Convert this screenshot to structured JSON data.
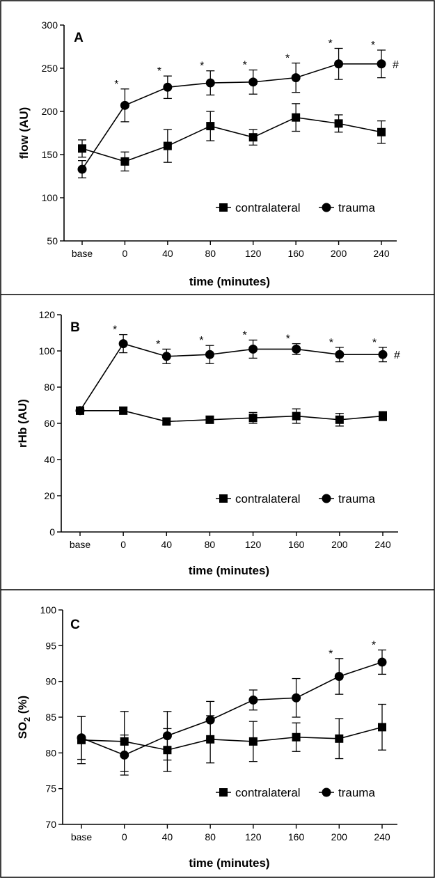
{
  "chart_data": [
    {
      "type": "line",
      "panel": "A",
      "xlabel": "time (minutes)",
      "ylabel": "flow (AU)",
      "ylim": [
        50,
        300
      ],
      "yticks": [
        50,
        100,
        150,
        200,
        250,
        300
      ],
      "categories": [
        "base",
        "0",
        "40",
        "80",
        "120",
        "160",
        "200",
        "240"
      ],
      "series": [
        {
          "name": "contralateral",
          "marker": "square",
          "values": [
            157,
            142,
            160,
            183,
            170,
            193,
            186,
            176
          ],
          "errors": [
            10,
            11,
            19,
            17,
            9,
            16,
            10,
            13
          ]
        },
        {
          "name": "trauma",
          "marker": "circle",
          "values": [
            133,
            207,
            228,
            233,
            234,
            239,
            255,
            255
          ],
          "errors": [
            10,
            19,
            13,
            14,
            14,
            17,
            18,
            16
          ]
        }
      ],
      "significance_marks": [
        "",
        "*",
        "*",
        "*",
        "*",
        "*",
        "*",
        "*"
      ],
      "significance_series": "trauma",
      "hash_mark": "#",
      "legend": "bottom-right"
    },
    {
      "type": "line",
      "panel": "B",
      "xlabel": "time (minutes)",
      "ylabel": "rHb (AU)",
      "ylim": [
        0,
        120
      ],
      "yticks": [
        0,
        20,
        40,
        60,
        80,
        100,
        120
      ],
      "categories": [
        "base",
        "0",
        "40",
        "80",
        "120",
        "160",
        "200",
        "240"
      ],
      "series": [
        {
          "name": "contralateral",
          "marker": "square",
          "values": [
            67,
            67,
            61,
            62,
            63,
            64,
            62,
            64
          ],
          "errors": [
            2,
            2,
            1.5,
            2,
            3,
            4,
            3.5,
            2.5
          ]
        },
        {
          "name": "trauma",
          "marker": "circle",
          "values": [
            67,
            104,
            97,
            98,
            101,
            101,
            98,
            98
          ],
          "errors": [
            2,
            5,
            4,
            5,
            5,
            3,
            4,
            4
          ]
        }
      ],
      "significance_marks": [
        "",
        "*",
        "*",
        "*",
        "*",
        "*",
        "*",
        "*"
      ],
      "significance_series": "trauma",
      "hash_mark": "#",
      "legend": "bottom-right"
    },
    {
      "type": "line",
      "panel": "C",
      "xlabel": "time (minutes)",
      "ylabel": "SO2 (%)",
      "ylabel_main": "SO",
      "ylabel_sub": "2",
      "ylabel_tail": " (%)",
      "ylim": [
        70,
        100
      ],
      "yticks": [
        70,
        75,
        80,
        85,
        90,
        95,
        100
      ],
      "categories": [
        "base",
        "0",
        "40",
        "80",
        "120",
        "160",
        "200",
        "240"
      ],
      "series": [
        {
          "name": "contralateral",
          "marker": "square",
          "values": [
            81.8,
            81.6,
            80.4,
            81.9,
            81.6,
            82.2,
            82.0,
            83.6
          ],
          "errors": [
            3.3,
            4.2,
            3.0,
            3.3,
            2.8,
            2.0,
            2.8,
            3.2
          ]
        },
        {
          "name": "trauma",
          "marker": "circle",
          "values": [
            82.1,
            79.7,
            82.4,
            84.6,
            87.4,
            87.7,
            90.7,
            92.7
          ],
          "errors": [
            3.0,
            2.8,
            3.4,
            2.6,
            1.4,
            2.7,
            2.5,
            1.7
          ]
        }
      ],
      "significance_marks": [
        "",
        "",
        "",
        "",
        "",
        "",
        "*",
        "*"
      ],
      "significance_series": "trauma",
      "hash_mark": "",
      "legend": "bottom-right"
    }
  ]
}
